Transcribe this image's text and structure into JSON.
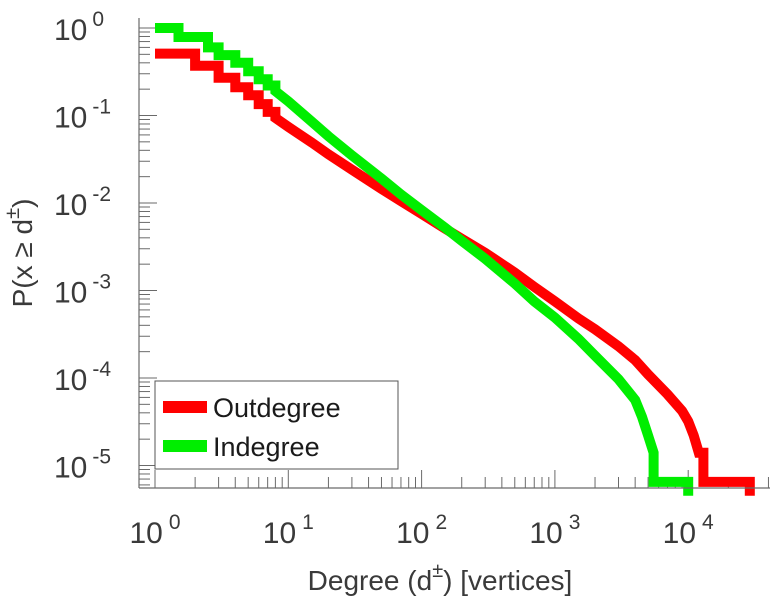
{
  "chart_data": {
    "type": "line",
    "scale": "log-log",
    "xlabel": "Degree (d ±) [vertices]",
    "xlabel_parts": {
      "pre": "Degree (d",
      "sup": "±",
      "post": ") [vertices]"
    },
    "ylabel": "P(x ≥ d±)",
    "ylabel_parts": {
      "pre": "P(x ≥ d",
      "sup": "±",
      "post": ")"
    },
    "xlim": [
      1,
      30000
    ],
    "ylim": [
      4.5e-06,
      1.25
    ],
    "x_ticks": [
      {
        "base": "10",
        "exp": "0",
        "value": 1
      },
      {
        "base": "10",
        "exp": "1",
        "value": 10
      },
      {
        "base": "10",
        "exp": "2",
        "value": 100
      },
      {
        "base": "10",
        "exp": "3",
        "value": 1000
      },
      {
        "base": "10",
        "exp": "4",
        "value": 10000
      }
    ],
    "y_ticks": [
      {
        "base": "10",
        "exp": "0",
        "value": 1
      },
      {
        "base": "10",
        "exp": "-1",
        "value": 0.1
      },
      {
        "base": "10",
        "exp": "-2",
        "value": 0.01
      },
      {
        "base": "10",
        "exp": "-3",
        "value": 0.001
      },
      {
        "base": "10",
        "exp": "-4",
        "value": 0.0001
      },
      {
        "base": "10",
        "exp": "-5",
        "value": 1e-05
      }
    ],
    "legend": {
      "position": "bottom-left"
    },
    "series": [
      {
        "name": "Outdegree",
        "color": "#ff0000",
        "points": [
          [
            1,
            0.51
          ],
          [
            2,
            0.51
          ],
          [
            2,
            0.37
          ],
          [
            3,
            0.37
          ],
          [
            3,
            0.27
          ],
          [
            4,
            0.27
          ],
          [
            4,
            0.21
          ],
          [
            5,
            0.21
          ],
          [
            5,
            0.17
          ],
          [
            6,
            0.17
          ],
          [
            6,
            0.135
          ],
          [
            7,
            0.135
          ],
          [
            7,
            0.11
          ],
          [
            8,
            0.11
          ],
          [
            8,
            0.094
          ],
          [
            10,
            0.074
          ],
          [
            15,
            0.049
          ],
          [
            20,
            0.036
          ],
          [
            30,
            0.024
          ],
          [
            50,
            0.0145
          ],
          [
            70,
            0.0105
          ],
          [
            100,
            0.0075
          ],
          [
            150,
            0.0051
          ],
          [
            200,
            0.0039
          ],
          [
            300,
            0.0027
          ],
          [
            500,
            0.0016
          ],
          [
            700,
            0.0011
          ],
          [
            1000,
            0.00075
          ],
          [
            1500,
            0.00048
          ],
          [
            2000,
            0.00036
          ],
          [
            3000,
            0.00023
          ],
          [
            4000,
            0.00016
          ],
          [
            5000,
            0.00011
          ],
          [
            7000,
            6.5e-05
          ],
          [
            9000,
            4.2e-05
          ],
          [
            10000,
            3.2e-05
          ],
          [
            11000,
            2.2e-05
          ],
          [
            12000,
            1.4e-05
          ],
          [
            13000,
            1.4e-05
          ],
          [
            13000,
            6.5e-06
          ],
          [
            29000,
            6.5e-06
          ],
          [
            29000,
            4.5e-06
          ]
        ]
      },
      {
        "name": "Indegree",
        "color": "#00ee00",
        "points": [
          [
            1,
            1.0
          ],
          [
            1.5,
            1.0
          ],
          [
            1.5,
            0.79
          ],
          [
            2.5,
            0.79
          ],
          [
            2.5,
            0.6
          ],
          [
            3,
            0.6
          ],
          [
            3,
            0.49
          ],
          [
            4,
            0.49
          ],
          [
            4,
            0.4
          ],
          [
            5,
            0.4
          ],
          [
            5,
            0.32
          ],
          [
            6,
            0.32
          ],
          [
            6,
            0.26
          ],
          [
            7,
            0.26
          ],
          [
            7,
            0.22
          ],
          [
            8,
            0.22
          ],
          [
            8,
            0.19
          ],
          [
            10,
            0.145
          ],
          [
            15,
            0.085
          ],
          [
            20,
            0.058
          ],
          [
            30,
            0.035
          ],
          [
            50,
            0.019
          ],
          [
            70,
            0.0125
          ],
          [
            100,
            0.0083
          ],
          [
            150,
            0.0052
          ],
          [
            200,
            0.0037
          ],
          [
            300,
            0.0023
          ],
          [
            500,
            0.0012
          ],
          [
            700,
            0.00075
          ],
          [
            1000,
            0.00049
          ],
          [
            1500,
            0.00028
          ],
          [
            2000,
            0.00018
          ],
          [
            3000,
            9.7e-05
          ],
          [
            4000,
            5.6e-05
          ],
          [
            4500,
            3.6e-05
          ],
          [
            5000,
            2.2e-05
          ],
          [
            5500,
            1.4e-05
          ],
          [
            5500,
            6.5e-06
          ],
          [
            10000,
            6.5e-06
          ],
          [
            10000,
            4.5e-06
          ]
        ]
      }
    ]
  }
}
